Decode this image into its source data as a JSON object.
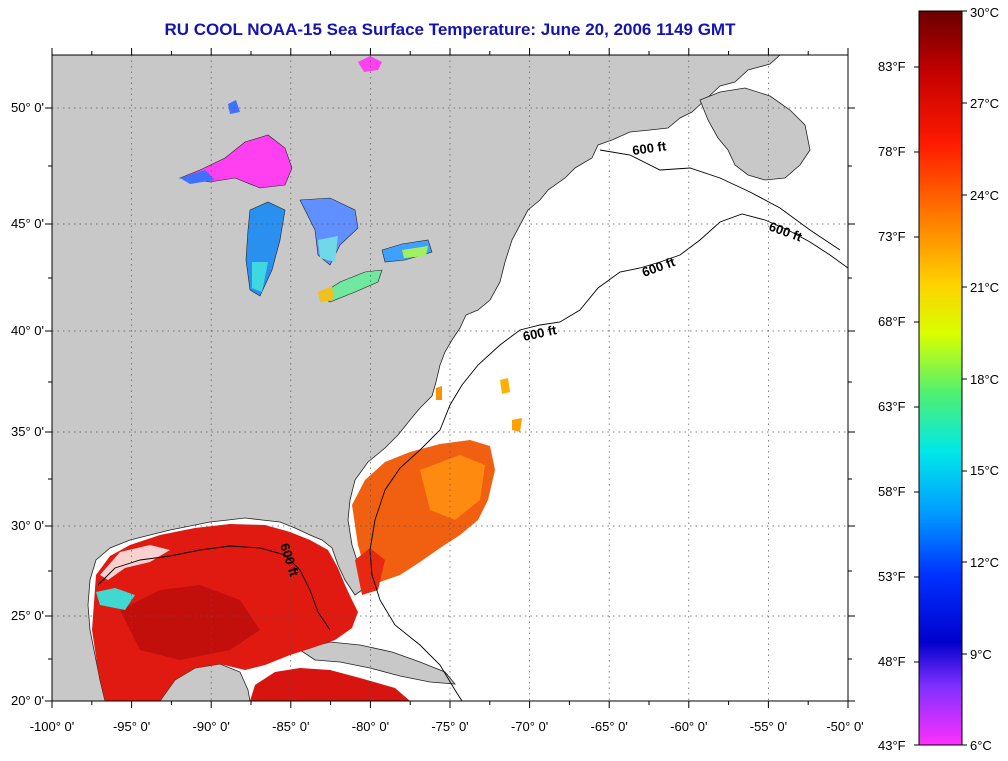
{
  "title": "RU COOL  NOAA-15  Sea Surface Temperature:  June 20, 2006 1149 GMT",
  "map": {
    "lon_ticks": [
      "-100° 0'",
      "-95° 0'",
      "-90° 0'",
      "-85° 0'",
      "-80° 0'",
      "-75° 0'",
      "-70° 0'",
      "-65° 0'",
      "-60° 0'",
      "-55° 0'",
      "-50° 0'"
    ],
    "lat_ticks": [
      "50° 0'",
      "45° 0'",
      "40° 0'",
      "35° 0'",
      "30° 0'",
      "25° 0'",
      "20° 0'"
    ],
    "contour_labels": [
      "600 ft",
      "600 ft",
      "600 ft",
      "600 ft",
      "600 ft"
    ],
    "colors": {
      "land": "#c8c8c8",
      "ocean_nodata": "#ffffff",
      "grid": "#555555"
    }
  },
  "colorbar": {
    "celsius": [
      "30°C",
      "27°C",
      "24°C",
      "21°C",
      "18°C",
      "15°C",
      "12°C",
      "9°C",
      "6°C"
    ],
    "fahrenheit": [
      "83°F",
      "78°F",
      "73°F",
      "68°F",
      "63°F",
      "58°F",
      "53°F",
      "48°F",
      "43°F"
    ],
    "stops": [
      "#7a0000",
      "#e00000",
      "#ff4000",
      "#ff8c00",
      "#ffd000",
      "#e8ff00",
      "#60ff40",
      "#00ffd0",
      "#00a0ff",
      "#0030ff",
      "#0000d0",
      "#9040ff",
      "#ff30ff"
    ]
  }
}
